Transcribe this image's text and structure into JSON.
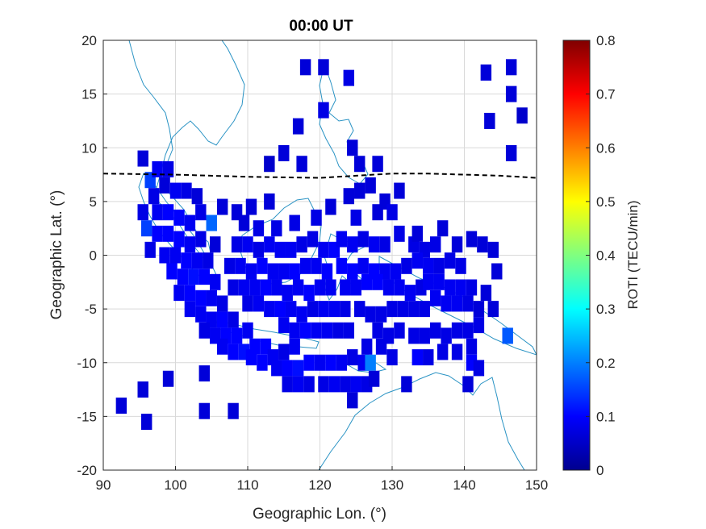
{
  "chart_data": {
    "type": "heatmap",
    "title": "00:00 UT",
    "xlabel": "Geographic Lon. (°)",
    "ylabel": "Geographic Lat. (°)",
    "xlim": [
      90,
      150
    ],
    "ylim": [
      -20,
      20
    ],
    "xticks": [
      "90",
      "100",
      "110",
      "120",
      "130",
      "140",
      "150"
    ],
    "yticks": [
      "-20",
      "-15",
      "-10",
      "-5",
      "0",
      "5",
      "10",
      "15",
      "20"
    ],
    "grid": true,
    "colormap": "jet",
    "colorbar": {
      "label": "ROTI (TECU/min)",
      "range": [
        0,
        0.8
      ],
      "ticks": [
        "0",
        "0.1",
        "0.2",
        "0.3",
        "0.4",
        "0.5",
        "0.6",
        "0.7",
        "0.8"
      ]
    },
    "cell_size_deg": [
      1.5,
      1.5
    ],
    "boundary_line": {
      "style": "dashed",
      "color": "#000000",
      "points": [
        [
          90,
          7.6
        ],
        [
          100,
          7.5
        ],
        [
          110,
          7.3
        ],
        [
          120,
          7.2
        ],
        [
          125,
          7.4
        ],
        [
          130,
          7.6
        ],
        [
          135,
          7.6
        ],
        [
          140,
          7.5
        ],
        [
          145,
          7.4
        ],
        [
          150,
          7.2
        ]
      ]
    },
    "roti_points": [
      [
        118,
        17.5,
        0.07
      ],
      [
        120.5,
        17.5,
        0.07
      ],
      [
        124,
        16.5,
        0.08
      ],
      [
        120.5,
        13.5,
        0.08
      ],
      [
        117,
        12,
        0.07
      ],
      [
        124.5,
        10,
        0.07
      ],
      [
        115,
        9.5,
        0.07
      ],
      [
        113,
        8.5,
        0.06
      ],
      [
        117.5,
        8.5,
        0.07
      ],
      [
        125.5,
        8.5,
        0.07
      ],
      [
        128,
        8.5,
        0.07
      ],
      [
        143,
        17,
        0.07
      ],
      [
        146.5,
        17.5,
        0.07
      ],
      [
        146.5,
        15,
        0.07
      ],
      [
        148,
        13,
        0.06
      ],
      [
        143.5,
        12.5,
        0.07
      ],
      [
        146.5,
        9.5,
        0.07
      ],
      [
        95.5,
        9,
        0.07
      ],
      [
        96.5,
        7,
        0.15
      ],
      [
        97.5,
        8,
        0.09
      ],
      [
        99,
        8,
        0.08
      ],
      [
        97,
        5.5,
        0.08
      ],
      [
        98.5,
        6.5,
        0.07
      ],
      [
        100,
        6,
        0.09
      ],
      [
        101.5,
        6,
        0.08
      ],
      [
        103,
        5.5,
        0.07
      ],
      [
        95.5,
        4,
        0.08
      ],
      [
        96,
        2.5,
        0.15
      ],
      [
        97.5,
        4,
        0.09
      ],
      [
        99,
        4,
        0.1
      ],
      [
        100.5,
        3.5,
        0.1
      ],
      [
        102,
        3,
        0.09
      ],
      [
        103.5,
        4,
        0.08
      ],
      [
        105,
        3,
        0.18
      ],
      [
        97.5,
        2,
        0.1
      ],
      [
        99,
        2,
        0.1
      ],
      [
        100.5,
        1.5,
        0.1
      ],
      [
        102,
        1,
        0.09
      ],
      [
        103.5,
        1.5,
        0.08
      ],
      [
        105.5,
        1,
        0.07
      ],
      [
        96.5,
        0.5,
        0.08
      ],
      [
        98.5,
        0,
        0.09
      ],
      [
        100,
        0,
        0.09
      ],
      [
        101.5,
        -0.5,
        0.1
      ],
      [
        103,
        -0.5,
        0.09
      ],
      [
        104.5,
        -0.5,
        0.08
      ],
      [
        99.5,
        -1.5,
        0.1
      ],
      [
        101,
        -2,
        0.1
      ],
      [
        102.5,
        -2,
        0.11
      ],
      [
        104,
        -2,
        0.1
      ],
      [
        105.5,
        -2.5,
        0.09
      ],
      [
        100.5,
        -3.5,
        0.09
      ],
      [
        102,
        -3.5,
        0.1
      ],
      [
        103.5,
        -4,
        0.1
      ],
      [
        105,
        -4,
        0.09
      ],
      [
        106.5,
        -4.5,
        0.08
      ],
      [
        102,
        -5,
        0.09
      ],
      [
        103.5,
        -5.5,
        0.09
      ],
      [
        105,
        -6,
        0.09
      ],
      [
        106.5,
        -6,
        0.1
      ],
      [
        108,
        -6,
        0.08
      ],
      [
        104,
        -7,
        0.08
      ],
      [
        105.5,
        -7.5,
        0.09
      ],
      [
        107,
        -7.5,
        0.1
      ],
      [
        108.5,
        -7.5,
        0.1
      ],
      [
        110,
        -7,
        0.09
      ],
      [
        106.5,
        -8.5,
        0.09
      ],
      [
        108,
        -9,
        0.1
      ],
      [
        109.5,
        -9,
        0.11
      ],
      [
        111,
        -8.5,
        0.1
      ],
      [
        112.5,
        -8.5,
        0.1
      ],
      [
        110.5,
        -9.5,
        0.1
      ],
      [
        112,
        -10,
        0.1
      ],
      [
        113.5,
        -9.5,
        0.09
      ],
      [
        115,
        -9,
        0.08
      ],
      [
        116.5,
        -8.5,
        0.09
      ],
      [
        114,
        -10.5,
        0.09
      ],
      [
        115.5,
        -10.5,
        0.1
      ],
      [
        117,
        -10.5,
        0.11
      ],
      [
        118.5,
        -10,
        0.1
      ],
      [
        120,
        -10,
        0.09
      ],
      [
        121.5,
        -10,
        0.1
      ],
      [
        123,
        -10,
        0.09
      ],
      [
        124.5,
        -9.5,
        0.08
      ],
      [
        126,
        -10,
        0.09
      ],
      [
        127,
        -10,
        0.2
      ],
      [
        115.5,
        -12,
        0.08
      ],
      [
        117,
        -12,
        0.09
      ],
      [
        118.5,
        -12,
        0.08
      ],
      [
        120.5,
        -12,
        0.08
      ],
      [
        122,
        -12,
        0.09
      ],
      [
        123.5,
        -12,
        0.08
      ],
      [
        125,
        -12,
        0.09
      ],
      [
        126.5,
        -12,
        0.08
      ],
      [
        124.5,
        -13.5,
        0.07
      ],
      [
        127.5,
        -11.5,
        0.07
      ],
      [
        106.5,
        4.5,
        0.07
      ],
      [
        108.5,
        4,
        0.07
      ],
      [
        110.5,
        4.5,
        0.07
      ],
      [
        109.5,
        3,
        0.07
      ],
      [
        113,
        5,
        0.07
      ],
      [
        111.5,
        2.5,
        0.08
      ],
      [
        114,
        2.5,
        0.08
      ],
      [
        116.5,
        3,
        0.08
      ],
      [
        119.5,
        3.5,
        0.08
      ],
      [
        121.5,
        4.5,
        0.07
      ],
      [
        108.5,
        1,
        0.08
      ],
      [
        110,
        1,
        0.09
      ],
      [
        111.5,
        0.5,
        0.08
      ],
      [
        113,
        1,
        0.09
      ],
      [
        114.5,
        0.5,
        0.09
      ],
      [
        116,
        0.5,
        0.09
      ],
      [
        117.5,
        1,
        0.08
      ],
      [
        119,
        1.5,
        0.08
      ],
      [
        120.5,
        0.5,
        0.09
      ],
      [
        122,
        0.5,
        0.1
      ],
      [
        107.5,
        -1,
        0.08
      ],
      [
        109,
        -1,
        0.09
      ],
      [
        110.5,
        -1.5,
        0.09
      ],
      [
        112,
        -1,
        0.1
      ],
      [
        113.5,
        -1.5,
        0.09
      ],
      [
        115,
        -1.5,
        0.09
      ],
      [
        116.5,
        -1.5,
        0.1
      ],
      [
        118,
        -1,
        0.09
      ],
      [
        119.5,
        -1,
        0.09
      ],
      [
        121,
        -1.5,
        0.1
      ],
      [
        108,
        -3,
        0.08
      ],
      [
        109.5,
        -3,
        0.09
      ],
      [
        111,
        -3,
        0.09
      ],
      [
        112.5,
        -3,
        0.1
      ],
      [
        114,
        -3,
        0.09
      ],
      [
        115.5,
        -3.5,
        0.09
      ],
      [
        117,
        -3,
        0.09
      ],
      [
        118.5,
        -3.5,
        0.1
      ],
      [
        120,
        -3,
        0.09
      ],
      [
        121.5,
        -3,
        0.09
      ],
      [
        110,
        -4.5,
        0.08
      ],
      [
        111.5,
        -4.5,
        0.09
      ],
      [
        113,
        -5,
        0.09
      ],
      [
        114.5,
        -5,
        0.1
      ],
      [
        116,
        -5,
        0.09
      ],
      [
        117.5,
        -5.5,
        0.09
      ],
      [
        119,
        -5,
        0.08
      ],
      [
        120.5,
        -5,
        0.09
      ],
      [
        122,
        -5,
        0.09
      ],
      [
        123.5,
        -5,
        0.08
      ],
      [
        115,
        -6.5,
        0.09
      ],
      [
        116.5,
        -7,
        0.09
      ],
      [
        118,
        -7,
        0.1
      ],
      [
        119.5,
        -7,
        0.09
      ],
      [
        121,
        -7,
        0.09
      ],
      [
        122.5,
        -7,
        0.08
      ],
      [
        124,
        -7,
        0.08
      ],
      [
        123,
        1.5,
        0.09
      ],
      [
        124.5,
        1,
        0.09
      ],
      [
        126,
        1.5,
        0.08
      ],
      [
        127.5,
        1,
        0.09
      ],
      [
        129,
        1,
        0.08
      ],
      [
        123,
        -1,
        0.1
      ],
      [
        124.5,
        -1.5,
        0.1
      ],
      [
        126,
        -1,
        0.09
      ],
      [
        127.5,
        -1.5,
        0.1
      ],
      [
        129,
        -1.5,
        0.09
      ],
      [
        130.5,
        -1.5,
        0.09
      ],
      [
        132,
        -1,
        0.08
      ],
      [
        123.5,
        -3,
        0.09
      ],
      [
        125,
        -3,
        0.09
      ],
      [
        126.5,
        -2.5,
        0.1
      ],
      [
        128,
        -2.5,
        0.1
      ],
      [
        129.5,
        -3,
        0.09
      ],
      [
        131,
        -3,
        0.09
      ],
      [
        132.5,
        -3.5,
        0.09
      ],
      [
        134,
        -3,
        0.08
      ],
      [
        125,
        3.5,
        0.08
      ],
      [
        128,
        4,
        0.07
      ],
      [
        127,
        6.5,
        0.07
      ],
      [
        129,
        5,
        0.07
      ],
      [
        131,
        6,
        0.07
      ],
      [
        124,
        5.5,
        0.07
      ],
      [
        125.5,
        6,
        0.07
      ],
      [
        130,
        4,
        0.08
      ],
      [
        131,
        2,
        0.08
      ],
      [
        133,
        1,
        0.08
      ],
      [
        134.5,
        0.5,
        0.08
      ],
      [
        136,
        1,
        0.08
      ],
      [
        133.5,
        -0.5,
        0.09
      ],
      [
        135,
        -1,
        0.09
      ],
      [
        136.5,
        -1,
        0.08
      ],
      [
        138,
        -0.5,
        0.08
      ],
      [
        139.5,
        -1,
        0.08
      ],
      [
        135,
        -2.5,
        0.09
      ],
      [
        136.5,
        -2.5,
        0.09
      ],
      [
        138,
        -3,
        0.09
      ],
      [
        139.5,
        -3,
        0.09
      ],
      [
        141,
        -3,
        0.08
      ],
      [
        136,
        -4,
        0.09
      ],
      [
        137.5,
        -4.5,
        0.09
      ],
      [
        139,
        -4.5,
        0.09
      ],
      [
        140.5,
        -4.5,
        0.08
      ],
      [
        142,
        -5,
        0.07
      ],
      [
        133.5,
        2,
        0.07
      ],
      [
        137,
        2.5,
        0.07
      ],
      [
        139,
        1,
        0.07
      ],
      [
        141,
        1.5,
        0.07
      ],
      [
        142.5,
        1,
        0.07
      ],
      [
        144,
        0.5,
        0.07
      ],
      [
        144.5,
        -1.5,
        0.07
      ],
      [
        143,
        -3.5,
        0.07
      ],
      [
        144,
        -5,
        0.07
      ],
      [
        125.5,
        -5,
        0.08
      ],
      [
        127,
        -5.5,
        0.08
      ],
      [
        128.5,
        -5.5,
        0.08
      ],
      [
        130,
        -5,
        0.08
      ],
      [
        131.5,
        -5,
        0.08
      ],
      [
        133,
        -5,
        0.08
      ],
      [
        134.5,
        -5,
        0.08
      ],
      [
        128,
        -7,
        0.08
      ],
      [
        129.5,
        -7.5,
        0.08
      ],
      [
        131,
        -7,
        0.08
      ],
      [
        133,
        -7.5,
        0.08
      ],
      [
        134.5,
        -7.5,
        0.08
      ],
      [
        136,
        -7,
        0.08
      ],
      [
        137.5,
        -7.5,
        0.08
      ],
      [
        139,
        -7,
        0.08
      ],
      [
        140.5,
        -7,
        0.08
      ],
      [
        142,
        -6.5,
        0.08
      ],
      [
        137,
        -9,
        0.08
      ],
      [
        139,
        -9,
        0.08
      ],
      [
        141,
        -8.5,
        0.08
      ],
      [
        146,
        -7.5,
        0.17
      ],
      [
        126.5,
        -8.5,
        0.08
      ],
      [
        128.5,
        -8.5,
        0.08
      ],
      [
        130,
        -9.5,
        0.08
      ],
      [
        133.5,
        -9.5,
        0.1
      ],
      [
        135,
        -9.5,
        0.08
      ],
      [
        141,
        -10,
        0.1
      ],
      [
        142,
        -10.5,
        0.08
      ],
      [
        140.5,
        -12,
        0.07
      ],
      [
        132,
        -12,
        0.07
      ],
      [
        95.5,
        -12.5,
        0.07
      ],
      [
        99,
        -11.5,
        0.07
      ],
      [
        92.5,
        -14,
        0.07
      ],
      [
        96,
        -15.5,
        0.07
      ],
      [
        104,
        -11,
        0.07
      ],
      [
        104,
        -14.5,
        0.07
      ],
      [
        108,
        -14.5,
        0.07
      ]
    ]
  }
}
